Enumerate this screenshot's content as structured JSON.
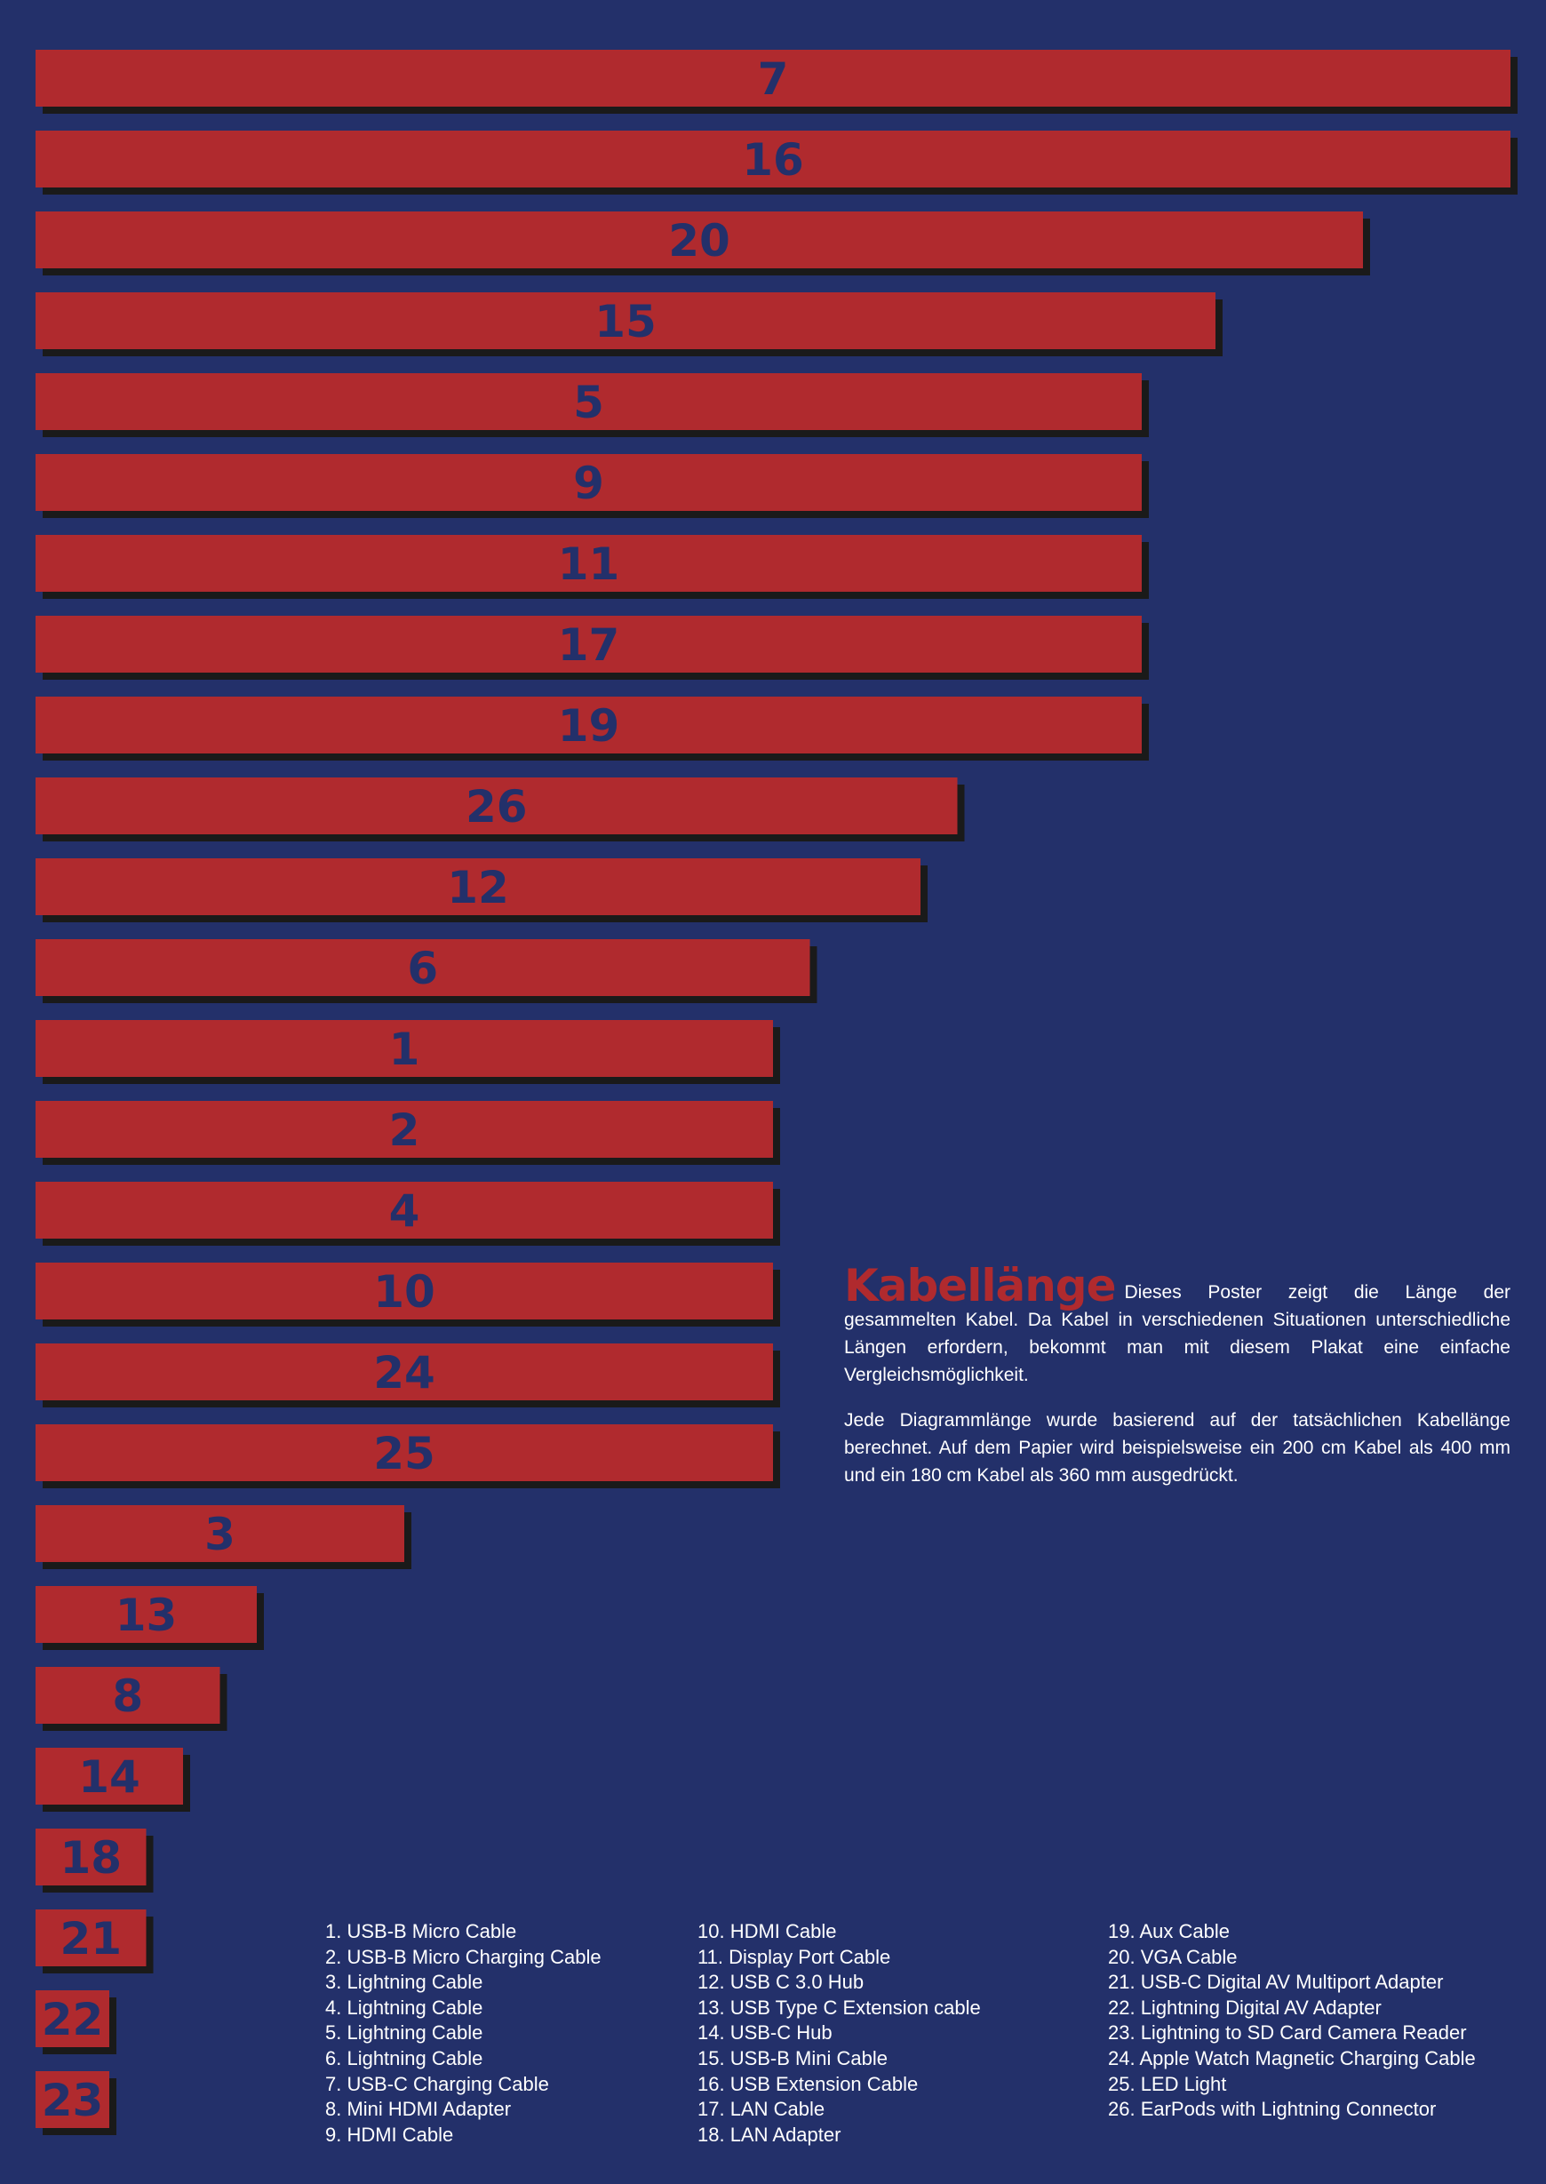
{
  "colors": {
    "background": "#23306a",
    "bar": "#b02a2e",
    "bar_shadow": "#1a1a1a",
    "label": "#23306a",
    "title": "#b02a2e",
    "text": "#ffffff"
  },
  "chart_data": {
    "type": "bar",
    "orientation": "horizontal",
    "sorted": "descending",
    "categories": [
      "7",
      "16",
      "20",
      "15",
      "5",
      "9",
      "11",
      "17",
      "19",
      "26",
      "12",
      "6",
      "1",
      "2",
      "4",
      "10",
      "24",
      "25",
      "3",
      "13",
      "8",
      "14",
      "18",
      "21",
      "22",
      "23"
    ],
    "values": [
      200,
      200,
      180,
      160,
      150,
      150,
      150,
      150,
      150,
      125,
      120,
      105,
      100,
      100,
      100,
      100,
      100,
      100,
      50,
      30,
      25,
      20,
      15,
      15,
      10,
      10
    ],
    "unit": "cm",
    "xlim": [
      0,
      200
    ],
    "grid": false,
    "data_labels": "bar number"
  },
  "info": {
    "title": "Kabellänge",
    "paragraph1": "Dieses Poster zeigt die Länge der gesammelten Kabel. Da Kabel in verschiedenen Situationen unterschiedliche Längen erfordern, bekommt man mit diesem Plakat eine einfache Vergleichsmöglichkeit.",
    "paragraph2": "Jede Diagrammlänge wurde basierend auf der tatsächlichen Kabellänge berechnet. Auf dem Papier wird beispielsweise ein 200 cm Kabel als 400 mm und ein 180 cm Kabel als 360 mm ausgedrückt."
  },
  "legend": {
    "column1": [
      "1. USB-B Micro Cable",
      "2. USB-B Micro Charging Cable",
      "3. Lightning Cable",
      "4. Lightning Cable",
      "5. Lightning Cable",
      "6. Lightning Cable",
      "7. USB-C Charging Cable",
      "8. Mini HDMI Adapter",
      "9. HDMI Cable"
    ],
    "column2": [
      "10. HDMI Cable",
      "11. Display Port Cable",
      "12. USB C 3.0 Hub",
      "13. USB Type C Extension cable",
      "14. USB-C Hub",
      "15. USB-B Mini Cable",
      "16. USB Extension Cable",
      "17. LAN Cable",
      "18. LAN Adapter"
    ],
    "column3": [
      "19. Aux Cable",
      "20. VGA Cable",
      "21. USB-C Digital AV Multiport Adapter",
      "22. Lightning Digital AV Adapter",
      "23. Lightning to SD Card Camera Reader",
      "24. Apple Watch Magnetic Charging Cable",
      "25. LED Light",
      "26. EarPods with Lightning Connector"
    ]
  }
}
